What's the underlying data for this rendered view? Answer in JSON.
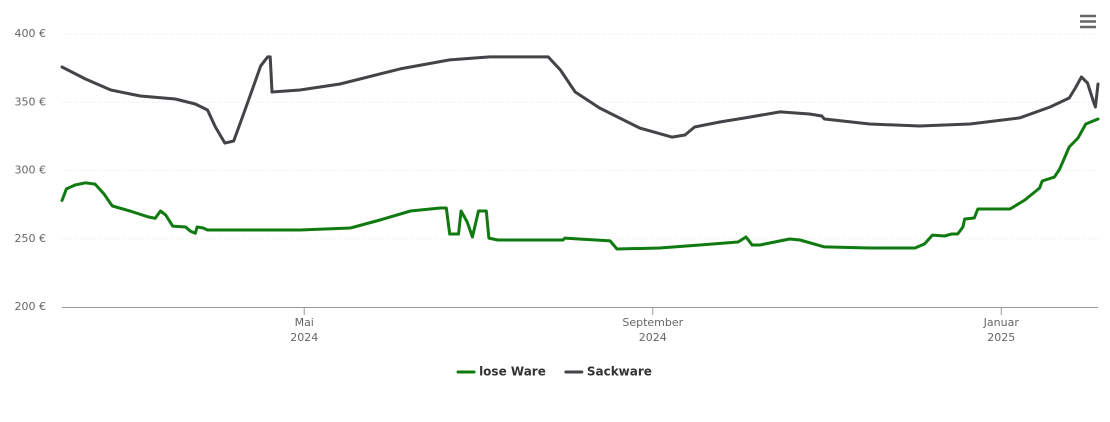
{
  "chart_data": {
    "type": "line",
    "xlim": [
      2.22,
      14.11
    ],
    "xticks": [
      {
        "value": 5,
        "label": [
          "Mai",
          "2024"
        ]
      },
      {
        "value": 9,
        "label": [
          "September",
          "2024"
        ]
      },
      {
        "value": 13,
        "label": [
          "Januar",
          "2025"
        ]
      }
    ],
    "ylim": [
      200,
      400
    ],
    "yticks": [
      {
        "value": 200,
        "label": "200 €"
      },
      {
        "value": 250,
        "label": "250 €"
      },
      {
        "value": 300,
        "label": "300 €"
      },
      {
        "value": 350,
        "label": "350 €"
      },
      {
        "value": 400,
        "label": "400 €"
      }
    ],
    "grid": true,
    "legend": "bottom",
    "series": [
      {
        "name": "lose Ware",
        "color": "#0f7a0f",
        "x": [
          2.22,
          2.27,
          2.37,
          2.49,
          2.6,
          2.7,
          2.78,
          2.8,
          3.0,
          3.21,
          3.29,
          3.35,
          3.41,
          3.49,
          3.64,
          3.69,
          3.75,
          3.77,
          3.84,
          3.89,
          4.5,
          4.95,
          5.53,
          5.87,
          6.22,
          6.56,
          6.63,
          6.67,
          6.77,
          6.8,
          6.87,
          6.93,
          7.0,
          7.09,
          7.12,
          7.22,
          7.97,
          7.99,
          8.51,
          8.59,
          9.08,
          9.54,
          9.98,
          10.07,
          10.14,
          10.23,
          10.57,
          10.69,
          10.97,
          11.49,
          12.01,
          12.12,
          12.21,
          12.35,
          12.43,
          12.5,
          12.56,
          12.58,
          12.69,
          12.73,
          13.1,
          13.27,
          13.44,
          13.47,
          13.61,
          13.67,
          13.78,
          13.88,
          13.97,
          14.11
        ],
        "values": [
          278,
          286.5,
          289.4,
          291,
          290,
          283,
          275.5,
          274,
          270.3,
          266,
          265,
          270.3,
          267.4,
          259.3,
          258.6,
          255.7,
          254,
          258.6,
          257.9,
          256.4,
          256.4,
          256.4,
          257.9,
          263.7,
          270.3,
          272.5,
          272.5,
          253.5,
          253.5,
          270.3,
          262.3,
          251.3,
          270.3,
          270.3,
          250.5,
          249.1,
          249.1,
          250.5,
          248.4,
          242.5,
          243.2,
          245.4,
          247.6,
          251.3,
          245.4,
          245.4,
          249.8,
          249.1,
          244,
          243.2,
          243.2,
          246.2,
          252.7,
          252,
          253.5,
          253.5,
          258.6,
          264.5,
          265.2,
          271.8,
          271.8,
          278.4,
          287.2,
          292.3,
          295.2,
          301.1,
          317.2,
          323.8,
          334.1,
          337.7
        ]
      },
      {
        "name": "Sackware",
        "color": "#434348",
        "x": [
          2.22,
          2.49,
          2.78,
          3.12,
          3.52,
          3.75,
          3.89,
          3.98,
          4.09,
          4.19,
          4.32,
          4.5,
          4.58,
          4.61,
          4.63,
          4.95,
          5.41,
          6.1,
          6.67,
          7.13,
          7.8,
          7.94,
          8.11,
          8.39,
          8.85,
          9.22,
          9.37,
          9.48,
          9.77,
          10.06,
          10.46,
          10.8,
          10.94,
          10.97,
          11.49,
          12.06,
          12.64,
          13.21,
          13.56,
          13.78,
          13.85,
          13.92,
          13.99,
          14.06,
          14.08,
          14.11
        ],
        "values": [
          375.8,
          367,
          359,
          354.6,
          352.4,
          348.7,
          344.3,
          331.9,
          320.1,
          321.6,
          344.3,
          376.6,
          383.2,
          383.2,
          357.5,
          359,
          363.4,
          374.4,
          381,
          383.2,
          383.2,
          373.6,
          357.5,
          345.8,
          331.1,
          324.5,
          326,
          331.9,
          335.5,
          338.5,
          342.9,
          341.4,
          339.9,
          337.7,
          334.1,
          332.6,
          334.1,
          338.5,
          346.5,
          353.1,
          360.4,
          368.5,
          364.1,
          350.2,
          346.5,
          363.4
        ]
      }
    ]
  }
}
